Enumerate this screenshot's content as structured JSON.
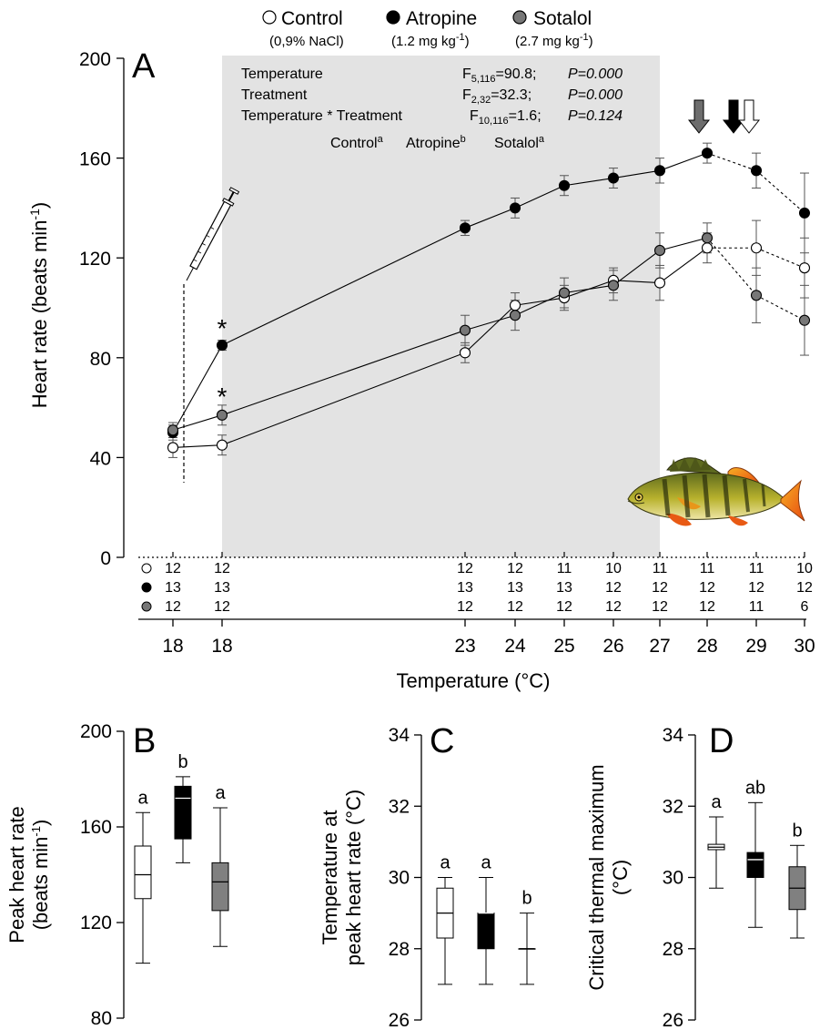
{
  "chart_data": [
    {
      "type": "line",
      "panel_label": "A",
      "xlabel": "Temperature (°C)",
      "ylabel": "Heart rate (beats min",
      "ylabel_sup": "-1",
      "ylabel_end": ")",
      "yticks": [
        "0",
        "40",
        "80",
        "120",
        "160",
        "200"
      ],
      "ylim": [
        0,
        200
      ],
      "categories": [
        "18",
        "18",
        "23",
        "24",
        "25",
        "26",
        "27",
        "28",
        "29",
        "30"
      ],
      "series": [
        {
          "name": "Control",
          "sublabel": "(0,9% NaCl)",
          "color": "#ffffff",
          "values": [
            44,
            45,
            82,
            101,
            104,
            111,
            110,
            124,
            124,
            116
          ],
          "errors": [
            4,
            4,
            4,
            5,
            5,
            5,
            7,
            6,
            11,
            12
          ],
          "n": [
            "12",
            "12",
            "12",
            "12",
            "11",
            "10",
            "11",
            "11",
            "11",
            "10"
          ]
        },
        {
          "name": "Atropine",
          "sublabel": "(1.2 mg kg-1)",
          "color": "#000000",
          "values": [
            50,
            85,
            132,
            140,
            149,
            152,
            155,
            162,
            155,
            138
          ],
          "errors": [
            3,
            2,
            3,
            4,
            4,
            4,
            5,
            4,
            7,
            16
          ],
          "n": [
            "13",
            "13",
            "13",
            "13",
            "13",
            "12",
            "12",
            "12",
            "12",
            "12"
          ]
        },
        {
          "name": "Sotalol",
          "sublabel": "(2.7 mg kg-1)",
          "color": "#777777",
          "values": [
            51,
            57,
            91,
            97,
            106,
            109,
            123,
            128,
            105,
            95
          ],
          "errors": [
            3,
            4,
            6,
            6,
            6,
            6,
            7,
            6,
            11,
            14
          ],
          "n": [
            "12",
            "12",
            "12",
            "12",
            "12",
            "12",
            "12",
            "12",
            "11",
            "6"
          ]
        }
      ],
      "asterisks": [
        "*",
        "*"
      ],
      "stats": [
        {
          "term": "Temperature",
          "F": "F",
          "df": "5,116",
          "value": "=90.8;",
          "p": "P=0.000"
        },
        {
          "term": "Treatment",
          "F": "F",
          "df": "2,32",
          "value": "=32.3;",
          "p": "P=0.000"
        },
        {
          "term": "Temperature * Treatment",
          "F": "F",
          "df": "10,116",
          "value": "=1.6;",
          "p": "P=0.124"
        }
      ],
      "groups": [
        {
          "name": "Control",
          "letter": "a"
        },
        {
          "name": "Atropine",
          "letter": "b"
        },
        {
          "name": "Sotalol",
          "letter": "a"
        }
      ]
    },
    {
      "type": "box",
      "panel_label": "B",
      "ylabel": [
        "Peak heart rate",
        "(beats min-1)"
      ],
      "yticks": [
        "80",
        "120",
        "160",
        "200"
      ],
      "ylim": [
        80,
        200
      ],
      "boxes": [
        {
          "group": "Control",
          "min": 103,
          "q1": 130,
          "median": 140,
          "q3": 152,
          "max": 166,
          "letter": "a"
        },
        {
          "group": "Atropine",
          "min": 145,
          "q1": 155,
          "median": 172,
          "q3": 177,
          "max": 181,
          "letter": "b"
        },
        {
          "group": "Sotalol",
          "min": 110,
          "q1": 125,
          "median": 137,
          "q3": 145,
          "max": 168,
          "letter": "a"
        }
      ]
    },
    {
      "type": "box",
      "panel_label": "C",
      "ylabel": [
        "Temperature at",
        "peak heart rate (°C)"
      ],
      "yticks": [
        "26",
        "28",
        "30",
        "32",
        "34"
      ],
      "ylim": [
        26,
        34
      ],
      "boxes": [
        {
          "group": "Control",
          "min": 27,
          "q1": 28.3,
          "median": 29,
          "q3": 29.7,
          "max": 30,
          "letter": "a"
        },
        {
          "group": "Atropine",
          "min": 27,
          "q1": 28,
          "median": 29,
          "q3": 29,
          "max": 30,
          "letter": "a"
        },
        {
          "group": "Sotalol",
          "min": 27,
          "q1": 28,
          "median": 28,
          "q3": 28,
          "max": 29,
          "letter": "b"
        }
      ]
    },
    {
      "type": "box",
      "panel_label": "D",
      "ylabel": [
        "Critical thermal maximum",
        "(°C)"
      ],
      "yticks": [
        "26",
        "28",
        "30",
        "32",
        "34"
      ],
      "ylim": [
        26,
        34
      ],
      "boxes": [
        {
          "group": "Control",
          "min": 29.7,
          "q1": 30.78,
          "median": 30.85,
          "q3": 30.93,
          "max": 31.7,
          "letter": "a"
        },
        {
          "group": "Atropine",
          "min": 28.6,
          "q1": 30.0,
          "median": 30.5,
          "q3": 30.7,
          "max": 32.1,
          "letter": "ab"
        },
        {
          "group": "Sotalol",
          "min": 28.3,
          "q1": 29.1,
          "median": 29.7,
          "q3": 30.3,
          "max": 30.9,
          "letter": "b"
        }
      ]
    }
  ]
}
